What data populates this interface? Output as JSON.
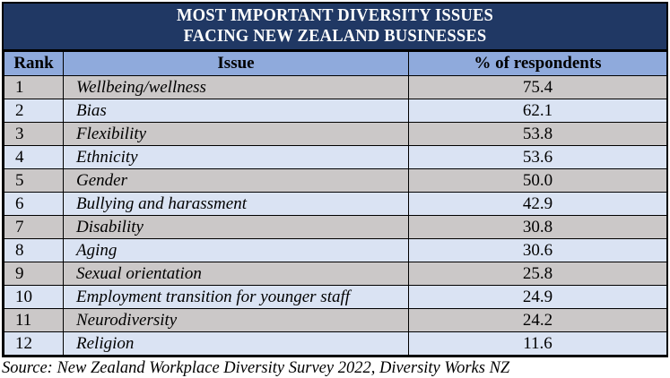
{
  "title": {
    "line1": "MOST IMPORTANT DIVERSITY ISSUES",
    "line2": "FACING NEW ZEALAND BUSINESSES"
  },
  "table": {
    "columns": [
      "Rank",
      "Issue",
      "% of respondents"
    ],
    "rows": [
      {
        "rank": "1",
        "issue": "Wellbeing/wellness",
        "percent": "75.4"
      },
      {
        "rank": "2",
        "issue": "Bias",
        "percent": "62.1"
      },
      {
        "rank": "3",
        "issue": "Flexibility",
        "percent": "53.8"
      },
      {
        "rank": "4",
        "issue": "Ethnicity",
        "percent": "53.6"
      },
      {
        "rank": "5",
        "issue": "Gender",
        "percent": "50.0"
      },
      {
        "rank": "6",
        "issue": "Bullying and harassment",
        "percent": "42.9"
      },
      {
        "rank": "7",
        "issue": "Disability",
        "percent": "30.8"
      },
      {
        "rank": "8",
        "issue": "Aging",
        "percent": "30.6"
      },
      {
        "rank": "9",
        "issue": "Sexual orientation",
        "percent": "25.8"
      },
      {
        "rank": "10",
        "issue": "Employment transition for younger staff",
        "percent": "24.9"
      },
      {
        "rank": "11",
        "issue": "Neurodiversity",
        "percent": "24.2"
      },
      {
        "rank": "12",
        "issue": "Religion",
        "percent": "11.6"
      }
    ]
  },
  "source": "Source: New Zealand Workplace Diversity Survey 2022, Diversity Works NZ",
  "colors": {
    "title_background": "#203864",
    "title_text": "#ffffff",
    "header_background": "#8FAADC",
    "row_gray": "#CBC8C8",
    "row_blue": "#DAE3F3",
    "border": "#000000"
  },
  "chart_data": {
    "type": "table",
    "title": "MOST IMPORTANT DIVERSITY ISSUES FACING NEW ZEALAND BUSINESSES",
    "columns": [
      "Rank",
      "Issue",
      "% of respondents"
    ],
    "categories": [
      "Wellbeing/wellness",
      "Bias",
      "Flexibility",
      "Ethnicity",
      "Gender",
      "Bullying and harassment",
      "Disability",
      "Aging",
      "Sexual orientation",
      "Employment transition for younger staff",
      "Neurodiversity",
      "Religion"
    ],
    "values": [
      75.4,
      62.1,
      53.8,
      53.6,
      50.0,
      42.9,
      30.8,
      30.6,
      25.8,
      24.9,
      24.2,
      11.6
    ],
    "source": "Source: New Zealand Workplace Diversity Survey 2022, Diversity Works NZ"
  }
}
